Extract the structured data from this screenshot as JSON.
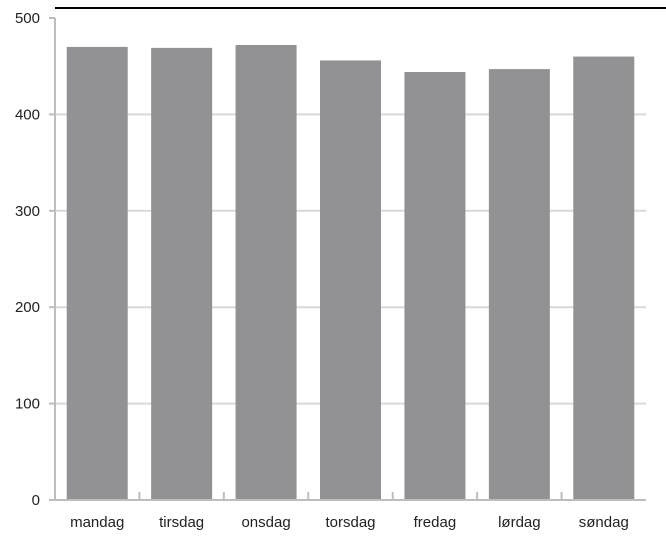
{
  "chart_data": {
    "type": "bar",
    "title": "",
    "xlabel": "",
    "ylabel": "",
    "categories": [
      "mandag",
      "tirsdag",
      "onsdag",
      "torsdag",
      "fredag",
      "lørdag",
      "søndag"
    ],
    "values": [
      470,
      469,
      472,
      456,
      444,
      447,
      460
    ],
    "ylim": [
      0,
      500
    ],
    "yticks": [
      0,
      100,
      200,
      300,
      400,
      500
    ],
    "grid": true,
    "legend": "none",
    "colors": {
      "bar": "#929295",
      "grid": "#d9d9d9",
      "axis": "#bdbdbd",
      "top_border": "#000000",
      "text": "#222222"
    }
  }
}
